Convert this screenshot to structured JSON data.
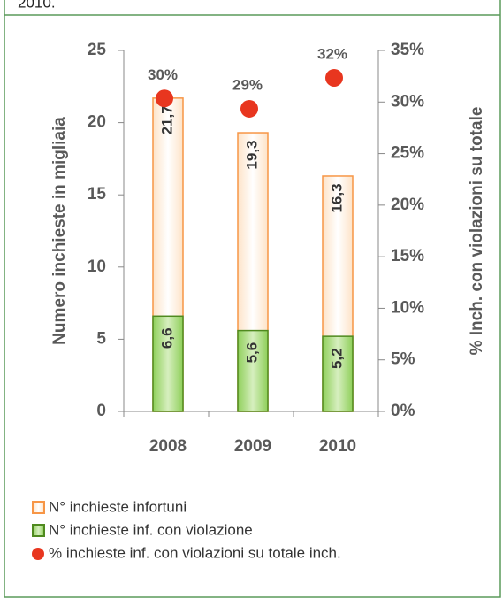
{
  "caption": "2010.",
  "chart_data": {
    "type": "bar",
    "categories": [
      "2008",
      "2009",
      "2010"
    ],
    "ylabel": "Numero inchieste in migliaia",
    "y2label": "% Inch. con violazioni su totale",
    "ylim": [
      0,
      25
    ],
    "yticks": [
      0,
      5,
      10,
      15,
      20,
      25
    ],
    "y2lim": [
      0,
      35
    ],
    "y2ticks": [
      {
        "value": 0,
        "label": "0%"
      },
      {
        "value": 5,
        "label": "5%"
      },
      {
        "value": 10,
        "label": "10%"
      },
      {
        "value": 15,
        "label": "15%"
      },
      {
        "value": 20,
        "label": "20%"
      },
      {
        "value": 25,
        "label": "25%"
      },
      {
        "value": 30,
        "label": "30%"
      },
      {
        "value": 35,
        "label": "35%"
      }
    ],
    "series": [
      {
        "name": "N° inchieste infortuni",
        "type": "bar",
        "color": "#f79646",
        "values": [
          21.7,
          19.3,
          16.3
        ],
        "value_labels": [
          "21,7",
          "19,3",
          "16,3"
        ]
      },
      {
        "name": "N° inchieste inf. con violazione",
        "type": "bar",
        "color": "#4f8a1f",
        "values": [
          6.6,
          5.6,
          5.2
        ],
        "value_labels": [
          "6,6",
          "5,6",
          "5,2"
        ]
      },
      {
        "name": "% inchieste inf. con violazioni su totale inch.",
        "type": "scatter",
        "axis": "y2",
        "color": "#e8361f",
        "values": [
          30,
          29,
          32
        ],
        "value_labels": [
          "30%",
          "29%",
          "32%"
        ]
      }
    ]
  }
}
